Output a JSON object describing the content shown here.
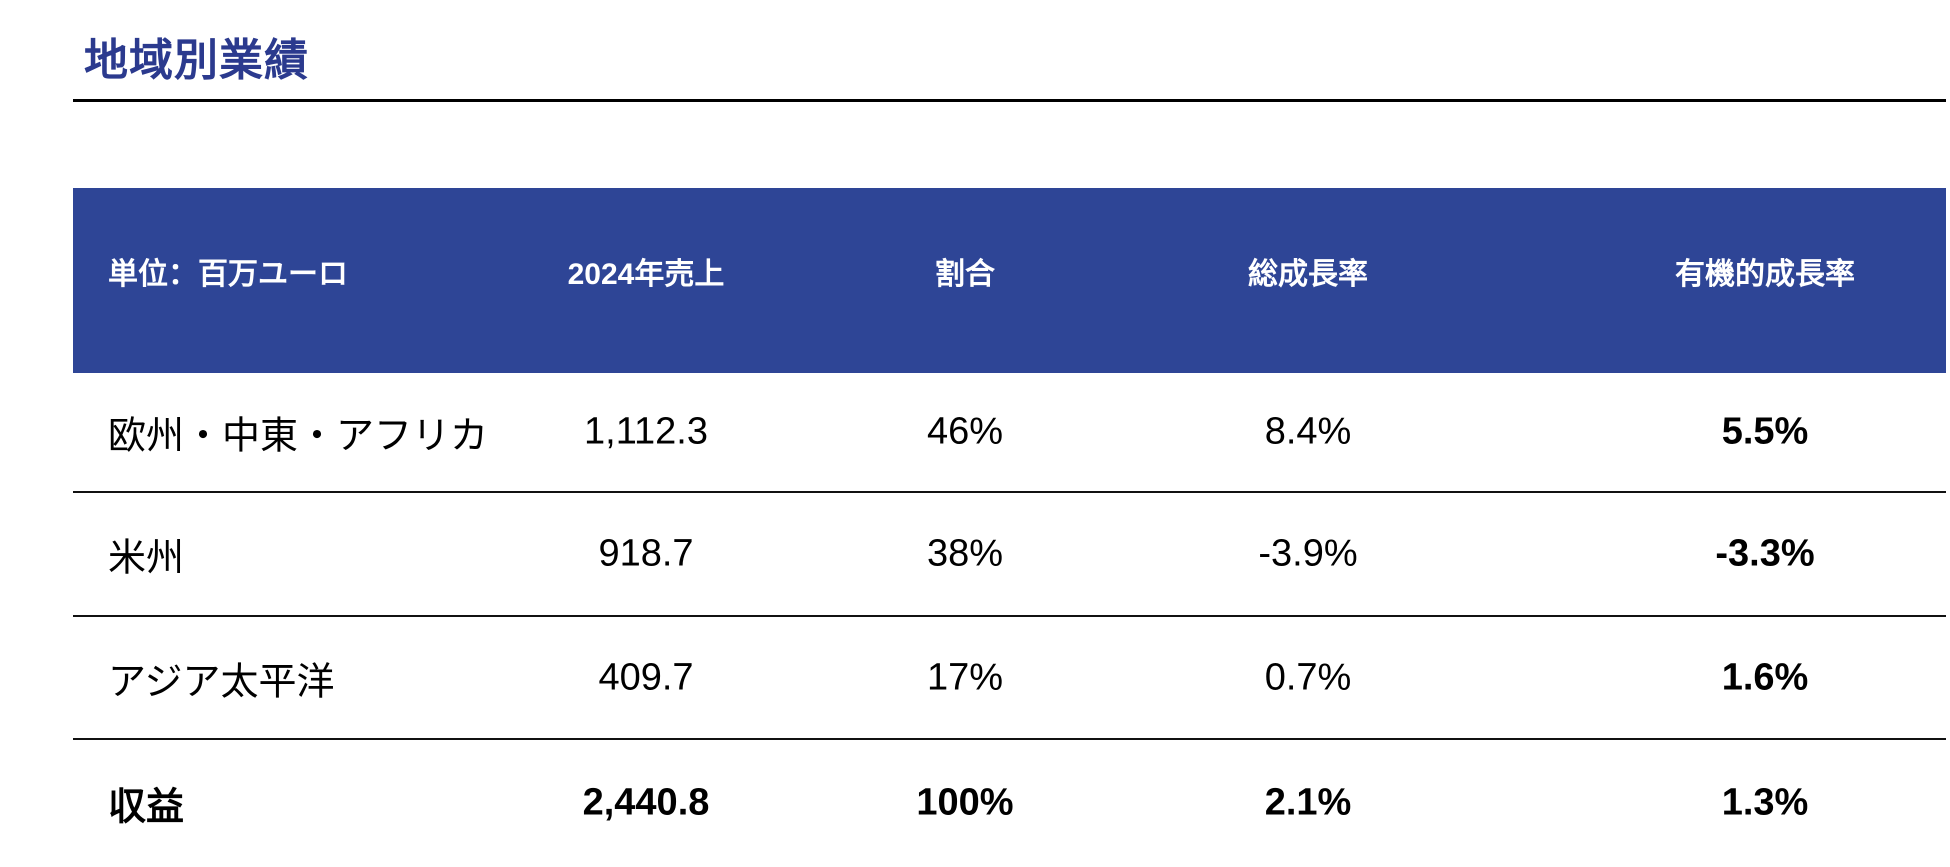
{
  "page": {
    "title": "地域別業績"
  },
  "colors": {
    "title_text": "#2b3a8e",
    "header_background": "#2e4596",
    "header_text": "#ffffff",
    "body_text": "#000000",
    "divider": "#111111",
    "page_background": "#ffffff"
  },
  "table": {
    "columns": [
      "単位：百万ユーロ",
      "2024年売上",
      "割合",
      "総成長率",
      "有機的成長率"
    ],
    "rows": [
      {
        "label": "欧州・中東・アフリカ",
        "sales": "1,112.3",
        "share": "46%",
        "total_growth": "8.4%",
        "organic_growth": "5.5%"
      },
      {
        "label": "米州",
        "sales": "918.7",
        "share": "38%",
        "total_growth": "-3.9%",
        "organic_growth": "-3.3%"
      },
      {
        "label": "アジア太平洋",
        "sales": "409.7",
        "share": "17%",
        "total_growth": "0.7%",
        "organic_growth": "1.6%"
      },
      {
        "label": "収益",
        "sales": "2,440.8",
        "share": "100%",
        "total_growth": "2.1%",
        "organic_growth": "1.3%"
      }
    ]
  },
  "chart_data": {
    "type": "table",
    "title": "地域別業績",
    "unit": "百万ユーロ",
    "columns": [
      "単位：百万ユーロ",
      "2024年売上",
      "割合",
      "総成長率",
      "有機的成長率"
    ],
    "rows": [
      [
        "欧州・中東・アフリカ",
        1112.3,
        "46%",
        "8.4%",
        "5.5%"
      ],
      [
        "米州",
        918.7,
        "38%",
        "-3.9%",
        "-3.3%"
      ],
      [
        "アジア太平洋",
        409.7,
        "17%",
        "0.7%",
        "1.6%"
      ],
      [
        "収益",
        2440.8,
        "100%",
        "2.1%",
        "1.3%"
      ]
    ]
  }
}
